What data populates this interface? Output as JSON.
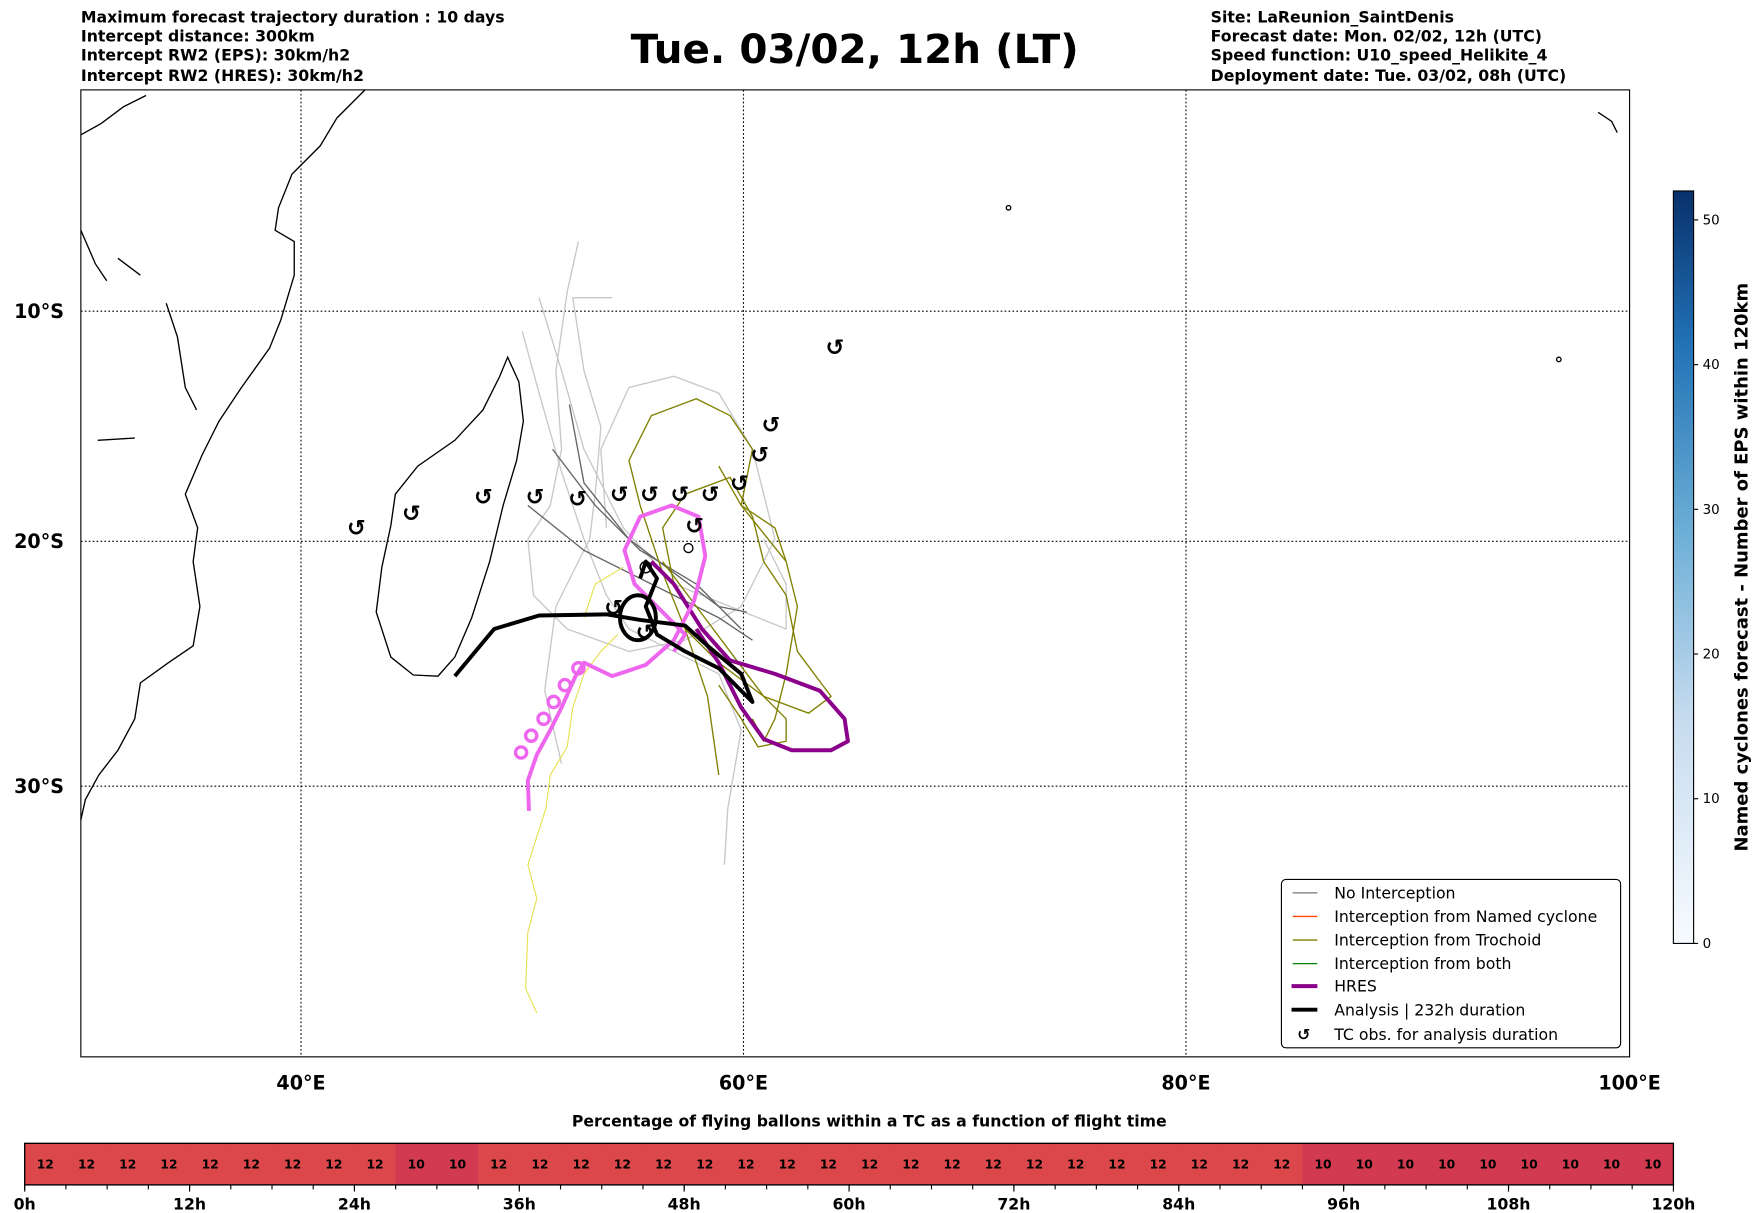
{
  "header": {
    "left": [
      "Maximum forecast trajectory duration : 10 days",
      "Intercept distance: 300km",
      "Intercept RW2 (EPS):  30km/h2",
      "Intercept RW2 (HRES): 30km/h2"
    ],
    "title": "Tue. 03/02, 12h (LT)",
    "right": [
      "Site: LaReunion_SaintDenis",
      "Forecast date: Mon. 02/02, 12h (UTC)",
      "Speed function: U10_speed_Helikite_4",
      "Deployment date: Tue. 03/02, 08h (UTC)"
    ]
  },
  "map": {
    "lon_labels": [
      "40°E",
      "60°E",
      "80°E",
      "100°E"
    ],
    "lat_labels": [
      "10°S",
      "20°S",
      "30°S"
    ],
    "tc_symbol": "↺"
  },
  "legend": {
    "items": [
      {
        "label": "No Interception",
        "color": "#777777"
      },
      {
        "label": "Interception from Named cyclone",
        "color": "#ff4500"
      },
      {
        "label": "Interception from Trochoid",
        "color": "#808000"
      },
      {
        "label": "Interception from both",
        "color": "#008000"
      },
      {
        "label": "HRES",
        "color": "#8b008b"
      },
      {
        "label": "Analysis | 232h duration",
        "color": "#000000"
      },
      {
        "label": "TC obs. for analysis duration",
        "color": "#000000"
      }
    ]
  },
  "colorbar": {
    "label": "Named cyclones forecast - Number of EPS within 120km",
    "ticks": [
      "0",
      "10",
      "20",
      "30",
      "40",
      "50"
    ],
    "range": [
      0,
      52
    ]
  },
  "timeline": {
    "title": "Percentage of flying ballons within a TC as a function of flight time",
    "values": [
      12,
      12,
      12,
      12,
      12,
      12,
      12,
      12,
      12,
      10,
      10,
      12,
      12,
      12,
      12,
      12,
      12,
      12,
      12,
      12,
      12,
      12,
      12,
      12,
      12,
      12,
      12,
      12,
      12,
      12,
      12,
      10,
      10,
      10,
      10,
      10,
      10,
      10,
      10,
      10
    ],
    "labels": [
      "12",
      "12",
      "12",
      "12",
      "12",
      "12",
      "12",
      "12",
      "12",
      "10",
      "10",
      "12",
      "12",
      "12",
      "12",
      "12",
      "12",
      "12",
      "12",
      "12",
      "12",
      "12",
      "12",
      "12",
      "12",
      "12",
      "12",
      "12",
      "12",
      "12",
      "12",
      "10",
      "10",
      "10",
      "10",
      "10",
      "10",
      "10",
      "10",
      "10"
    ],
    "ticks": [
      "0h",
      "12h",
      "24h",
      "36h",
      "48h",
      "60h",
      "72h",
      "84h",
      "96h",
      "108h",
      "120h"
    ],
    "color_12": "#dc474b",
    "color_10": "#d13a50"
  }
}
